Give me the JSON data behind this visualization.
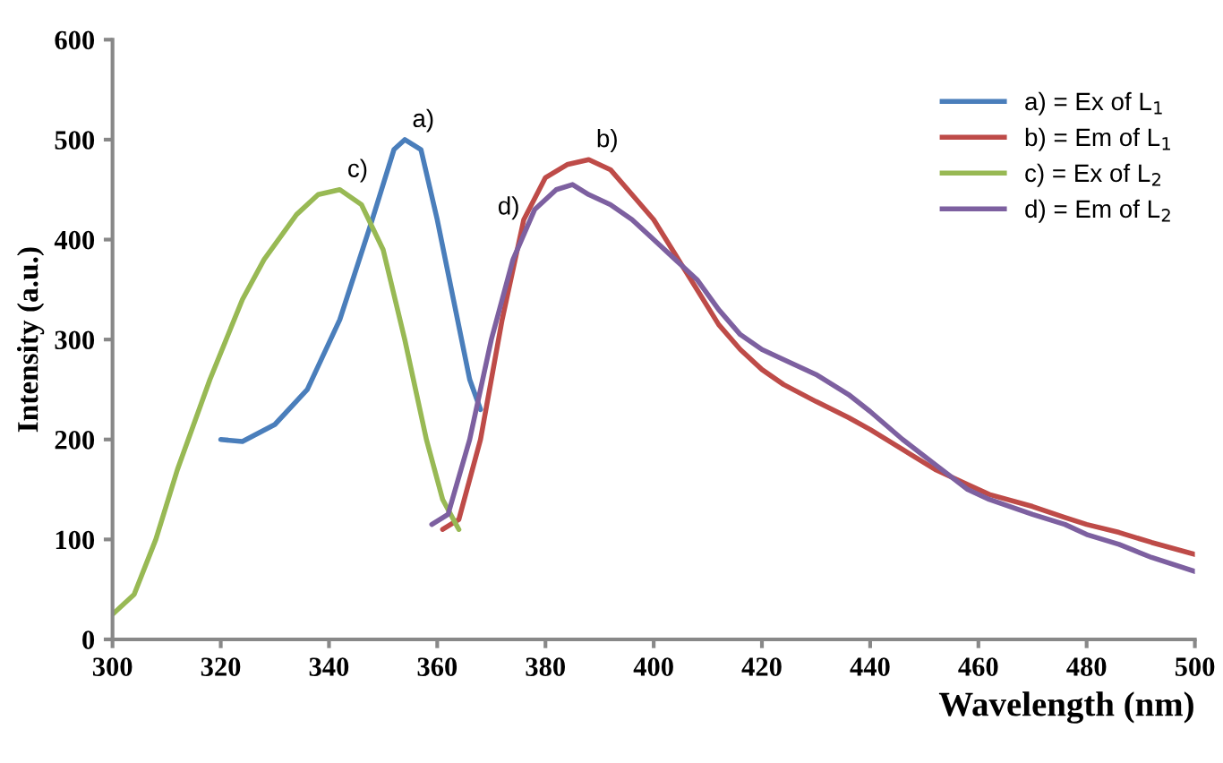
{
  "chart_data": {
    "type": "line",
    "xlabel": "Wavelength (nm)",
    "ylabel": "Intensity (a.u.)",
    "xlim": [
      300,
      500
    ],
    "xticks": [
      300,
      320,
      340,
      360,
      380,
      400,
      420,
      440,
      460,
      480,
      500
    ],
    "ylim": [
      0,
      600
    ],
    "yticks": [
      0,
      100,
      200,
      300,
      400,
      500,
      600
    ],
    "grid": false,
    "legend": "top right",
    "marker": "none",
    "line_style": "solid",
    "series": [
      {
        "name": "a) = Ex of L$_{1}$",
        "color": "#4a7ebb",
        "x": [
          320,
          324,
          330,
          336,
          342,
          348,
          352,
          354,
          357,
          360,
          363,
          366,
          368
        ],
        "values": [
          200,
          198,
          215,
          250,
          320,
          420,
          490,
          500,
          490,
          420,
          340,
          260,
          230
        ]
      },
      {
        "name": "b) = Em of L$_{1}$",
        "color": "#be4b48",
        "x": [
          361,
          364,
          368,
          372,
          376,
          380,
          384,
          388,
          392,
          396,
          400,
          404,
          408,
          412,
          416,
          420,
          424,
          430,
          436,
          440,
          446,
          452,
          458,
          462,
          470,
          476,
          480,
          486,
          492,
          500
        ],
        "values": [
          110,
          120,
          200,
          320,
          420,
          462,
          475,
          480,
          470,
          445,
          420,
          385,
          350,
          315,
          290,
          270,
          255,
          238,
          222,
          210,
          190,
          170,
          155,
          145,
          133,
          122,
          115,
          107,
          97,
          85
        ]
      },
      {
        "name": "c) = Ex of L$_{2}$",
        "color": "#98b954",
        "x": [
          300,
          304,
          308,
          312,
          318,
          324,
          328,
          334,
          338,
          342,
          346,
          350,
          354,
          358,
          361,
          364
        ],
        "values": [
          25,
          45,
          100,
          170,
          260,
          340,
          380,
          425,
          445,
          450,
          435,
          390,
          300,
          200,
          140,
          110
        ]
      },
      {
        "name": "d) = Em of L$_{2}$",
        "color": "#7d60a0",
        "x": [
          359,
          362,
          366,
          370,
          374,
          378,
          382,
          385,
          388,
          392,
          396,
          400,
          404,
          408,
          412,
          416,
          420,
          424,
          430,
          436,
          440,
          446,
          452,
          458,
          462,
          470,
          476,
          480,
          486,
          492,
          500
        ],
        "values": [
          115,
          125,
          200,
          300,
          380,
          430,
          450,
          455,
          445,
          435,
          420,
          400,
          380,
          360,
          330,
          305,
          290,
          280,
          265,
          245,
          228,
          200,
          175,
          150,
          140,
          125,
          115,
          105,
          95,
          82,
          68
        ]
      }
    ],
    "annotations": [
      {
        "text": "a)",
        "x": 354,
        "y": 500
      },
      {
        "text": "b)",
        "x": 388,
        "y": 480
      },
      {
        "text": "c)",
        "x": 342,
        "y": 450
      },
      {
        "text": "d)",
        "x": 378,
        "y": 430
      }
    ]
  }
}
